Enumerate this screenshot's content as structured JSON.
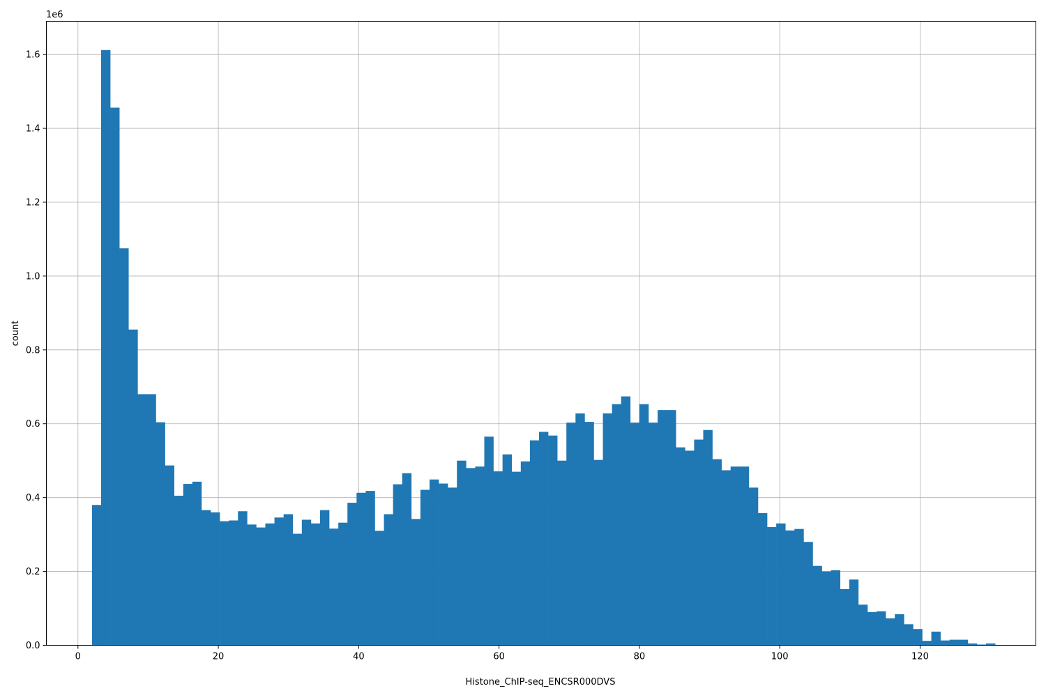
{
  "chart_data": {
    "type": "bar",
    "subtype": "histogram",
    "xlabel": "Histone_ChIP-seq_ENCSR000DVS",
    "ylabel": "count",
    "y_offset_label": "1e6",
    "y_scale": 1000000,
    "xlim": [
      -4.5,
      136.5
    ],
    "ylim": [
      0,
      1690000
    ],
    "grid": true,
    "bar_color": "#1f77b4",
    "x_ticks": [
      0,
      20,
      40,
      60,
      80,
      100,
      120
    ],
    "y_ticks": [
      0.0,
      0.2,
      0.4,
      0.6,
      0.8,
      1.0,
      1.2,
      1.4,
      1.6
    ],
    "bin_edges": [
      2,
      3.3,
      4.6,
      5.9,
      7.2,
      8.5,
      9.8,
      11.1,
      12.4,
      13.7,
      15,
      16.3,
      17.6,
      18.9,
      20.2,
      21.5,
      22.8,
      24.1,
      25.4,
      26.7,
      28,
      29.3,
      30.6,
      31.9,
      33.2,
      34.5,
      35.8,
      37.1,
      38.4,
      39.7,
      41,
      42.3,
      43.6,
      44.9,
      46.2,
      47.5,
      48.8,
      50.1,
      51.4,
      52.7,
      54,
      55.3,
      56.6,
      57.9,
      59.2,
      60.5,
      61.8,
      63.1,
      64.4,
      65.7,
      67,
      68.3,
      69.6,
      70.9,
      72.2,
      73.5,
      74.8,
      76.1,
      77.4,
      78.7,
      80,
      81.3,
      82.6,
      83.9,
      85.2,
      86.5,
      87.8,
      89.1,
      90.4,
      91.7,
      93,
      94.3,
      95.6,
      96.9,
      98.2,
      99.5,
      100.8,
      102.1,
      103.4,
      104.7,
      106,
      107.3,
      108.6,
      109.9,
      111.2,
      112.5,
      113.8,
      115.1,
      116.4,
      117.7,
      119,
      120.3,
      121.6,
      122.9,
      124.2,
      125.5,
      126.8,
      128.1,
      129.4,
      130.7
    ],
    "counts": [
      380000,
      1612000,
      1456000,
      1075000,
      855000,
      680000,
      680000,
      604000,
      487000,
      405000,
      437000,
      443000,
      366000,
      360000,
      336000,
      338000,
      363000,
      327000,
      319000,
      330000,
      346000,
      355000,
      302000,
      340000,
      330000,
      366000,
      316000,
      332000,
      386000,
      413000,
      418000,
      310000,
      355000,
      436000,
      466000,
      342000,
      421000,
      449000,
      438000,
      427000,
      500000,
      480000,
      484000,
      565000,
      471000,
      517000,
      470000,
      498000,
      555000,
      578000,
      568000,
      500000,
      603000,
      628000,
      605000,
      502000,
      628000,
      653000,
      674000,
      603000,
      653000,
      603000,
      637000,
      637000,
      536000,
      527000,
      557000,
      583000,
      504000,
      474000,
      484000,
      484000,
      427000,
      358000,
      320000,
      330000,
      311000,
      315000,
      280000,
      215000,
      200000,
      203000,
      152000,
      178000,
      110000,
      90000,
      92000,
      73000,
      84000,
      57000,
      44000,
      12000,
      37000,
      13000,
      15000,
      15000,
      5000,
      2000,
      5000,
      5000
    ]
  }
}
